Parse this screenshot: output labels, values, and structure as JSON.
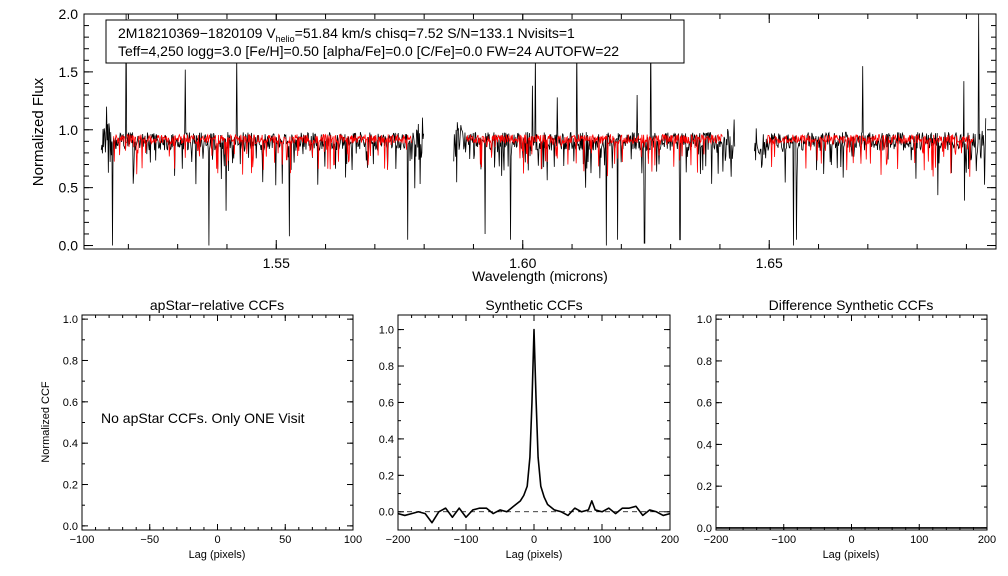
{
  "chart_data": [
    {
      "type": "line",
      "title": "",
      "annotation": {
        "line1_prefix": "2M18210369−1820109  V",
        "line1_sub": "helio",
        "line1_suffix": "=51.84 km/s  chisq=7.52  S/N=133.1  Nvisits=1",
        "line2": "Teff=4,250 logg=3.0 [Fe/H]=0.50 [alpha/Fe]=0.0 [C/Fe]=0.0 FW=24 AUTOFW=22"
      },
      "xlabel": "Wavelength (microns)",
      "ylabel": "Normalized Flux",
      "xlim": [
        1.511,
        1.696
      ],
      "ylim": [
        -0.03,
        2.0
      ],
      "xticks": [
        1.55,
        1.6,
        1.65
      ],
      "xtick_labels": [
        "1.55",
        "1.60",
        "1.65"
      ],
      "yticks": [
        0.0,
        0.5,
        1.0,
        1.5,
        2.0
      ],
      "ytick_labels": [
        "0.0",
        "0.5",
        "1.0",
        "1.5",
        "2.0"
      ],
      "chips": [
        [
          1.5145,
          1.58
        ],
        [
          1.586,
          1.643
        ],
        [
          1.647,
          1.694
        ]
      ],
      "absorption_lines": [
        [
          1.5168,
          0.0
        ],
        [
          1.5363,
          0.0
        ],
        [
          1.5398,
          0.3
        ],
        [
          1.5527,
          0.08
        ],
        [
          1.5767,
          0.05
        ],
        [
          1.5924,
          0.1
        ],
        [
          1.5975,
          0.05
        ],
        [
          1.617,
          0.0
        ],
        [
          1.6192,
          0.05
        ],
        [
          1.6247,
          0.02
        ],
        [
          1.6319,
          0.05
        ],
        [
          1.6549,
          0.0
        ],
        [
          1.6555,
          0.05
        ]
      ],
      "emission_spikes": [
        [
          1.5195,
          2.02
        ],
        [
          1.5156,
          1.2
        ],
        [
          1.5315,
          1.52
        ],
        [
          1.542,
          1.63
        ],
        [
          1.6026,
          1.65
        ],
        [
          1.607,
          1.28
        ],
        [
          1.611,
          1.73
        ],
        [
          1.6232,
          1.3
        ],
        [
          1.626,
          1.85
        ],
        [
          1.669,
          1.55
        ],
        [
          1.6895,
          1.42
        ],
        [
          1.6925,
          2.02
        ],
        [
          1.602,
          1.38
        ]
      ],
      "series": [
        {
          "color": "#000000"
        },
        {
          "color": "#ff0000"
        }
      ]
    },
    {
      "type": "line",
      "title": "apStar−relative CCFs",
      "message": "No apStar CCFs.  Only ONE Visit",
      "xlabel": "Lag (pixels)",
      "ylabel": "Normalized CCF",
      "xlim": [
        -100,
        100
      ],
      "ylim": [
        -0.02,
        1.02
      ],
      "xticks": [
        -100,
        -50,
        0,
        50,
        100
      ],
      "xtick_labels": [
        "−100",
        "−50",
        "0",
        "50",
        "100"
      ],
      "yticks": [
        0.0,
        0.2,
        0.4,
        0.6,
        0.8,
        1.0
      ],
      "ytick_labels": [
        "0.0",
        "0.2",
        "0.4",
        "0.6",
        "0.8",
        "1.0"
      ],
      "series": []
    },
    {
      "type": "line",
      "title": "Synthetic CCFs",
      "xlabel": "Lag (pixels)",
      "ylabel": "",
      "xlim": [
        -200,
        200
      ],
      "ylim": [
        -0.1,
        1.08
      ],
      "xticks": [
        -200,
        -100,
        0,
        100,
        200
      ],
      "xtick_labels": [
        "−200",
        "−100",
        "0",
        "100",
        "200"
      ],
      "yticks": [
        0.0,
        0.2,
        0.4,
        0.6,
        0.8,
        1.0
      ],
      "ytick_labels": [
        "0.0",
        "0.2",
        "0.4",
        "0.6",
        "0.8",
        "1.0"
      ],
      "reference_line": {
        "y": 0.0,
        "style": "dashed"
      },
      "series": [
        {
          "color": "#000000",
          "x": [
            -200,
            -190,
            -180,
            -170,
            -160,
            -150,
            -140,
            -130,
            -120,
            -110,
            -100,
            -90,
            -80,
            -70,
            -60,
            -50,
            -40,
            -30,
            -20,
            -15,
            -10,
            -6,
            -3,
            0,
            3,
            6,
            10,
            15,
            20,
            30,
            40,
            50,
            60,
            70,
            80,
            85,
            90,
            100,
            110,
            120,
            130,
            140,
            150,
            160,
            170,
            180,
            190,
            200
          ],
          "y": [
            -0.01,
            -0.02,
            -0.01,
            0.0,
            -0.01,
            -0.06,
            0.0,
            0.02,
            -0.03,
            0.02,
            -0.03,
            0.01,
            0.02,
            0.02,
            -0.01,
            0.01,
            0.0,
            0.03,
            0.06,
            0.09,
            0.14,
            0.3,
            0.6,
            1.0,
            0.62,
            0.3,
            0.14,
            0.08,
            0.04,
            0.01,
            0.0,
            -0.02,
            0.02,
            0.0,
            0.01,
            0.06,
            0.01,
            0.0,
            0.02,
            -0.01,
            0.02,
            0.02,
            0.03,
            -0.02,
            0.01,
            0.0,
            -0.02,
            -0.01
          ]
        }
      ]
    },
    {
      "type": "line",
      "title": "Difference Synthetic CCFs",
      "xlabel": "Lag (pixels)",
      "ylabel": "",
      "xlim": [
        -200,
        200
      ],
      "ylim": [
        -0.01,
        1.02
      ],
      "xticks": [
        -200,
        -100,
        0,
        100,
        200
      ],
      "xtick_labels": [
        "−200",
        "−100",
        "0",
        "100",
        "200"
      ],
      "yticks": [
        0.0,
        0.2,
        0.4,
        0.6,
        0.8,
        1.0
      ],
      "ytick_labels": [
        "0.0",
        "0.2",
        "0.4",
        "0.6",
        "0.8",
        "1.0"
      ],
      "series": [
        {
          "color": "#000000",
          "x": [
            -200,
            200
          ],
          "y": [
            0.0,
            0.0
          ]
        }
      ]
    }
  ]
}
